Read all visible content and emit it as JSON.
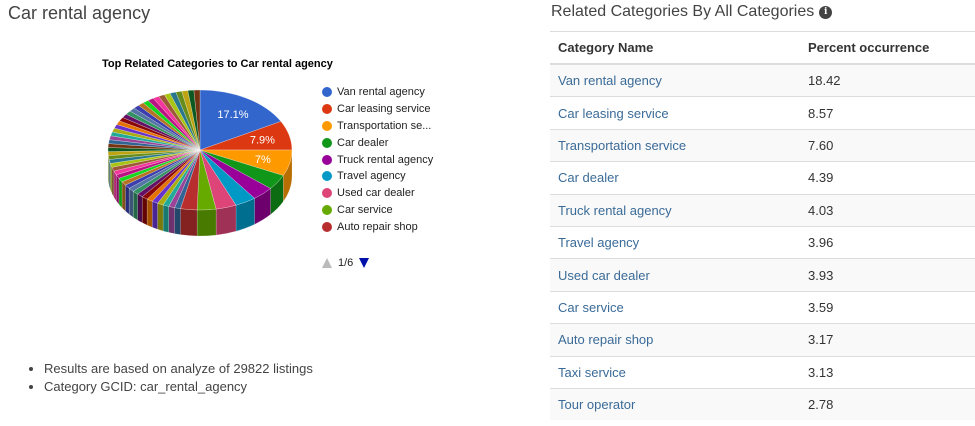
{
  "page_title": "Car rental agency",
  "chart": {
    "title": "Top Related Categories to Car rental agency",
    "pager": "1/6"
  },
  "chart_data": {
    "type": "pie",
    "title": "Top Related Categories to Car rental agency",
    "slices": [
      {
        "name": "Van rental agency",
        "value": 17.1,
        "color": "#3366cc",
        "label": "17.1%"
      },
      {
        "name": "Car leasing service",
        "value": 7.9,
        "color": "#dc3912",
        "label": "7.9%"
      },
      {
        "name": "Transportation se...",
        "value": 7.0,
        "color": "#ff9900",
        "label": "7%"
      },
      {
        "name": "Car dealer",
        "value": 4.1,
        "color": "#109618",
        "label": ""
      },
      {
        "name": "Truck rental agency",
        "value": 3.8,
        "color": "#990099",
        "label": ""
      },
      {
        "name": "Travel agency",
        "value": 3.7,
        "color": "#0099c6",
        "label": ""
      },
      {
        "name": "Used car dealer",
        "value": 3.6,
        "color": "#dd4477",
        "label": ""
      },
      {
        "name": "Car service",
        "value": 3.3,
        "color": "#66aa00",
        "label": ""
      },
      {
        "name": "Auto repair shop",
        "value": 2.9,
        "color": "#b82e2e",
        "label": ""
      }
    ],
    "other_slice_colors": [
      "#316395",
      "#994499",
      "#22aa99",
      "#aaaa11",
      "#6633cc",
      "#e67300",
      "#8b0707",
      "#651067",
      "#329262",
      "#5574a6",
      "#3b3eac",
      "#b77322",
      "#16d620",
      "#b91383",
      "#f4359e",
      "#9c5935",
      "#a9c413",
      "#2a778d",
      "#668d1c",
      "#bea413",
      "#0c5922",
      "#743411"
    ],
    "legend_position": "right"
  },
  "notes": [
    "Results are based on analyze of 29822 listings",
    "Category GCID: car_rental_agency"
  ],
  "related": {
    "title": "Related Categories By All Categories",
    "headers": [
      "Category Name",
      "Percent occurrence"
    ],
    "rows": [
      {
        "name": "Van rental agency",
        "value": "18.42"
      },
      {
        "name": "Car leasing service",
        "value": "8.57"
      },
      {
        "name": "Transportation service",
        "value": "7.60"
      },
      {
        "name": "Car dealer",
        "value": "4.39"
      },
      {
        "name": "Truck rental agency",
        "value": "4.03"
      },
      {
        "name": "Travel agency",
        "value": "3.96"
      },
      {
        "name": "Used car dealer",
        "value": "3.93"
      },
      {
        "name": "Car service",
        "value": "3.59"
      },
      {
        "name": "Auto repair shop",
        "value": "3.17"
      },
      {
        "name": "Taxi service",
        "value": "3.13"
      },
      {
        "name": "Tour operator",
        "value": "2.78"
      }
    ]
  }
}
